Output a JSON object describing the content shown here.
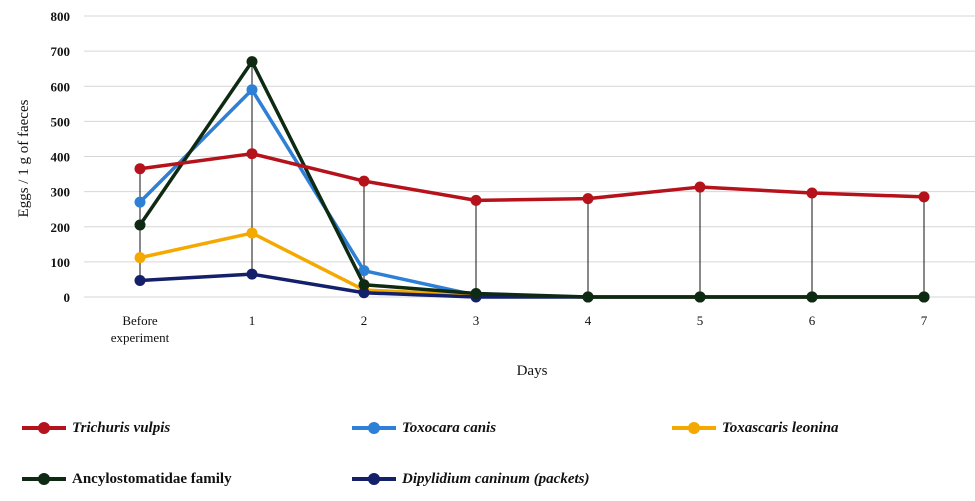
{
  "chart_data": {
    "type": "line",
    "title": "",
    "xlabel": "Days",
    "ylabel": "Eggs / 1 g of faeces",
    "ylim": [
      0,
      800
    ],
    "yticks": [
      0,
      100,
      200,
      300,
      400,
      500,
      600,
      700,
      800
    ],
    "categories": [
      [
        "Before",
        "experiment"
      ],
      [
        "1"
      ],
      [
        "2"
      ],
      [
        "3"
      ],
      [
        "4"
      ],
      [
        "5"
      ],
      [
        "6"
      ],
      [
        "7"
      ]
    ],
    "grid": true,
    "drop_lines": true,
    "legend_position": "bottom",
    "series": [
      {
        "name": "Toxocara canis",
        "italic": true,
        "color": "#2e7fd6",
        "values": [
          270,
          590,
          75,
          5,
          0,
          0,
          0,
          0
        ]
      },
      {
        "name": "Toxascaris leonina",
        "italic": true,
        "color": "#f5a800",
        "values": [
          112,
          182,
          20,
          5,
          0,
          0,
          0,
          0
        ]
      },
      {
        "name": "Dipylidium caninum (packets)",
        "italic": true,
        "color": "#14206a",
        "values": [
          47,
          65,
          12,
          0,
          0,
          0,
          0,
          0
        ]
      },
      {
        "name": "Ancylostomatidae family",
        "italic": false,
        "color": "#0f2a12",
        "values": [
          205,
          670,
          35,
          10,
          0,
          0,
          0,
          0
        ]
      },
      {
        "name": "Trichuris vulpis",
        "italic": true,
        "color": "#b5121b",
        "values": [
          365,
          408,
          330,
          275,
          280,
          313,
          296,
          285
        ]
      }
    ],
    "legend_order": [
      4,
      0,
      1,
      3,
      2
    ]
  }
}
